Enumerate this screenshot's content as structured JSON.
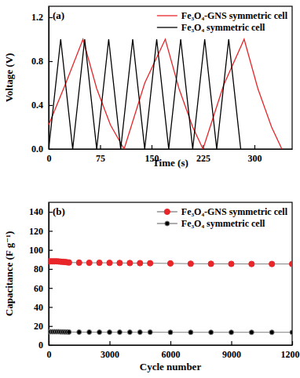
{
  "chart_data": [
    {
      "type": "line",
      "annotation": "(a)",
      "x_label": "Time (s)",
      "y_label": "Voltage (V)",
      "xlim": [
        0,
        355
      ],
      "ylim": [
        0,
        1.3
      ],
      "xticks": [
        0,
        75,
        150,
        225,
        300
      ],
      "yticks": [
        {
          "value": 0,
          "label": "0.0"
        },
        0.4,
        0.8,
        1.2
      ],
      "legend": "upper right",
      "series": [
        {
          "name": "Fe₃O₄-GNS symmetric cell",
          "color": "#e8262a",
          "x": [
            0,
            25,
            50,
            70,
            90,
            110,
            140,
            170,
            190,
            210,
            225,
            255,
            285,
            305,
            325,
            340
          ],
          "values": [
            0.22,
            0.6,
            1.0,
            0.55,
            0.22,
            0,
            0.6,
            1.0,
            0.55,
            0.2,
            0,
            0.58,
            1.0,
            0.55,
            0.2,
            0
          ]
        },
        {
          "name": "Fe₃O₄ symmetric cell",
          "color": "#000000",
          "x": [
            0,
            17.5,
            35,
            52.5,
            70,
            87.5,
            105,
            122.5,
            140,
            157.5,
            175,
            192.5,
            210,
            227.5,
            245,
            262.5,
            280
          ],
          "values": [
            0,
            1,
            0,
            1,
            0,
            1,
            0,
            1,
            0,
            1,
            0,
            1,
            0,
            1,
            0,
            1,
            0
          ]
        }
      ]
    },
    {
      "type": "line",
      "annotation": "(b)",
      "x_label": "Cycle number",
      "y_label": "Capacitance (F g⁻¹)",
      "xlim": [
        0,
        12000
      ],
      "ylim": [
        0,
        150
      ],
      "xticks": [
        0,
        3000,
        6000,
        9000,
        12000
      ],
      "yticks": [
        0,
        20,
        40,
        60,
        80,
        100,
        120,
        140
      ],
      "legend": "upper right",
      "marker": "circle",
      "series": [
        {
          "name": "Fe₃O₄-GNS symmetric cell",
          "color": "#e8262a",
          "x": [
            0,
            100,
            200,
            300,
            400,
            500,
            600,
            700,
            800,
            900,
            1000,
            1500,
            2000,
            2500,
            3000,
            3500,
            4000,
            4500,
            5000,
            6000,
            7000,
            8000,
            9000,
            10000,
            11000,
            12000
          ],
          "values": [
            88,
            88,
            88,
            88,
            88,
            87.8,
            87.6,
            87.5,
            87.3,
            87,
            86.8,
            86.6,
            86.5,
            86.5,
            86.4,
            86.3,
            86.2,
            86.1,
            86,
            85.8,
            85.5,
            85.4,
            85.3,
            85.2,
            85.2,
            85.2
          ]
        },
        {
          "name": "Fe₃O₄ symmetric cell",
          "color": "#000000",
          "x": [
            0,
            100,
            200,
            300,
            400,
            500,
            600,
            700,
            800,
            900,
            1000,
            1500,
            2000,
            2500,
            3000,
            3500,
            4000,
            4500,
            5000,
            6000,
            7000,
            8000,
            9000,
            10000,
            11000,
            12000
          ],
          "values": [
            14,
            14,
            14,
            14,
            14,
            14,
            13.9,
            13.9,
            13.8,
            13.8,
            13.7,
            13.6,
            13.6,
            13.5,
            13.5,
            13.5,
            13.5,
            13.5,
            13.5,
            13.4,
            13.4,
            13.4,
            13.4,
            13.4,
            13.4,
            13.4
          ]
        }
      ]
    }
  ]
}
